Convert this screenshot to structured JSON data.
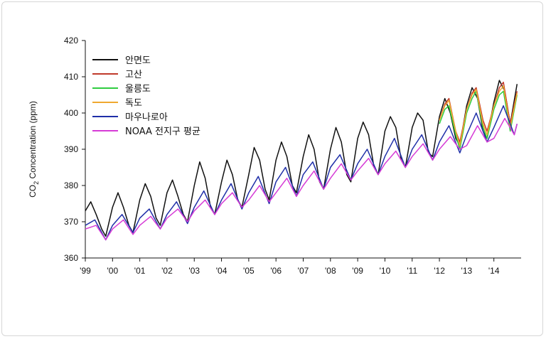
{
  "chart_data": {
    "type": "line",
    "title": "",
    "xlabel": "",
    "ylabel": "CO2 Concentration (ppm)",
    "ylabel_main": "CO",
    "ylabel_sub": "2",
    "ylabel_rest": " Concentration (ppm)",
    "xlim": [
      1999,
      2015
    ],
    "ylim": [
      360,
      420
    ],
    "yticks": [
      360,
      370,
      380,
      390,
      400,
      410,
      420
    ],
    "xticks": [
      {
        "x": 1999,
        "label": "'99"
      },
      {
        "x": 2000,
        "label": "'00"
      },
      {
        "x": 2001,
        "label": "'01"
      },
      {
        "x": 2002,
        "label": "'02"
      },
      {
        "x": 2003,
        "label": "'03"
      },
      {
        "x": 2004,
        "label": "'04"
      },
      {
        "x": 2005,
        "label": "'05"
      },
      {
        "x": 2006,
        "label": "'06"
      },
      {
        "x": 2007,
        "label": "'07"
      },
      {
        "x": 2008,
        "label": "'08"
      },
      {
        "x": 2009,
        "label": "'09"
      },
      {
        "x": 2010,
        "label": "'10"
      },
      {
        "x": 2011,
        "label": "'11"
      },
      {
        "x": 2012,
        "label": "'12"
      },
      {
        "x": 2013,
        "label": "'13"
      },
      {
        "x": 2014,
        "label": "'14"
      }
    ],
    "grid": false,
    "legend_position": "top-left",
    "series": [
      {
        "name": "안면도",
        "color": "#111111",
        "x": [
          1999.0,
          1999.2,
          1999.4,
          1999.6,
          1999.75,
          2000.0,
          2000.2,
          2000.4,
          2000.6,
          2000.75,
          2001.0,
          2001.2,
          2001.4,
          2001.6,
          2001.75,
          2002.0,
          2002.2,
          2002.4,
          2002.6,
          2002.75,
          2003.0,
          2003.2,
          2003.4,
          2003.6,
          2003.75,
          2004.0,
          2004.2,
          2004.4,
          2004.6,
          2004.75,
          2005.0,
          2005.2,
          2005.4,
          2005.6,
          2005.75,
          2006.0,
          2006.2,
          2006.4,
          2006.6,
          2006.75,
          2007.0,
          2007.2,
          2007.4,
          2007.6,
          2007.75,
          2008.0,
          2008.2,
          2008.4,
          2008.6,
          2008.75,
          2009.0,
          2009.2,
          2009.4,
          2009.6,
          2009.75,
          2010.0,
          2010.2,
          2010.4,
          2010.6,
          2010.75,
          2011.0,
          2011.2,
          2011.4,
          2011.6,
          2011.75,
          2012.0,
          2012.2,
          2012.4,
          2012.6,
          2012.75,
          2013.0,
          2013.2,
          2013.4,
          2013.6,
          2013.75,
          2014.0,
          2014.2,
          2014.4,
          2014.6,
          2014.85
        ],
        "y": [
          373,
          375.5,
          372,
          368,
          366,
          374,
          378,
          374,
          369,
          367,
          376,
          380.5,
          377,
          371,
          369,
          378,
          381.5,
          377,
          372,
          370,
          380,
          386.5,
          382,
          374,
          372,
          381,
          387,
          383,
          376,
          374,
          383,
          390.5,
          387,
          379,
          376,
          387,
          392,
          388,
          380,
          378,
          388,
          394,
          390,
          381,
          379,
          390,
          396,
          392,
          383,
          381,
          393,
          397.5,
          394,
          385,
          383,
          395,
          399,
          396,
          387,
          385,
          396,
          400,
          398,
          389,
          388,
          399,
          404,
          400,
          393,
          391,
          402,
          407,
          404,
          395,
          393,
          403,
          409,
          406,
          397,
          408
        ]
      },
      {
        "name": "고산",
        "color": "#c0392b",
        "x": [
          2012.0,
          2012.2,
          2012.35,
          2012.6,
          2012.75,
          2013.0,
          2013.2,
          2013.35,
          2013.6,
          2013.75,
          2014.0,
          2014.2,
          2014.35,
          2014.6,
          2014.85
        ],
        "y": [
          398,
          402.5,
          404,
          395,
          392,
          401,
          405.5,
          407,
          398,
          395,
          402,
          407,
          408.5,
          397,
          406
        ]
      },
      {
        "name": "울릉도",
        "color": "#2ecc40",
        "x": [
          2012.0,
          2012.2,
          2012.35,
          2012.6,
          2012.75,
          2013.0,
          2013.2,
          2013.35,
          2013.6,
          2013.75,
          2014.0,
          2014.2,
          2014.35,
          2014.6,
          2014.85
        ],
        "y": [
          397,
          401,
          402,
          394,
          390,
          400,
          404,
          406,
          396,
          393,
          401,
          405,
          406,
          395,
          405
        ]
      },
      {
        "name": "독도",
        "color": "#f0a830",
        "x": [
          2012.0,
          2012.2,
          2012.35,
          2012.6,
          2012.75,
          2013.0,
          2013.2,
          2013.35,
          2013.6,
          2013.75,
          2014.0,
          2014.2,
          2014.35,
          2014.6,
          2014.85
        ],
        "y": [
          398,
          402,
          403.5,
          395,
          391,
          401,
          405,
          406.5,
          397,
          394,
          402,
          406,
          407.5,
          396,
          405.5
        ]
      },
      {
        "name": "마우나로아",
        "color": "#1f2fa8",
        "x": [
          1999.0,
          1999.35,
          1999.75,
          2000.0,
          2000.35,
          2000.75,
          2001.0,
          2001.35,
          2001.75,
          2002.0,
          2002.35,
          2002.75,
          2003.0,
          2003.35,
          2003.75,
          2004.0,
          2004.35,
          2004.75,
          2005.0,
          2005.35,
          2005.75,
          2006.0,
          2006.35,
          2006.75,
          2007.0,
          2007.35,
          2007.75,
          2008.0,
          2008.35,
          2008.75,
          2009.0,
          2009.35,
          2009.75,
          2010.0,
          2010.35,
          2010.75,
          2011.0,
          2011.35,
          2011.75,
          2012.0,
          2012.35,
          2012.75,
          2013.0,
          2013.35,
          2013.75,
          2014.0,
          2014.35,
          2014.75,
          2014.85
        ],
        "y": [
          369,
          370.5,
          365,
          369,
          372,
          367,
          371,
          373.5,
          368,
          372,
          375.5,
          369.5,
          374,
          378.5,
          372,
          376,
          380.5,
          373.5,
          378,
          382.5,
          375,
          381,
          385,
          377,
          383,
          386.5,
          379,
          385,
          388.5,
          381.5,
          386,
          390,
          383,
          388,
          393,
          385,
          390,
          394,
          387,
          392,
          396.5,
          389,
          394,
          400,
          392,
          396,
          402,
          394,
          397
        ]
      },
      {
        "name": "NOAA 전지구 평균",
        "color": "#d63bd6",
        "x": [
          1999.0,
          1999.4,
          1999.75,
          2000.0,
          2000.4,
          2000.75,
          2001.0,
          2001.4,
          2001.75,
          2002.0,
          2002.4,
          2002.75,
          2003.0,
          2003.4,
          2003.75,
          2004.0,
          2004.4,
          2004.75,
          2005.0,
          2005.4,
          2005.75,
          2006.0,
          2006.4,
          2006.75,
          2007.0,
          2007.4,
          2007.75,
          2008.0,
          2008.4,
          2008.75,
          2009.0,
          2009.4,
          2009.75,
          2010.0,
          2010.4,
          2010.75,
          2011.0,
          2011.4,
          2011.75,
          2012.0,
          2012.4,
          2012.75,
          2013.0,
          2013.4,
          2013.75,
          2014.0,
          2014.4,
          2014.75,
          2014.85
        ],
        "y": [
          368,
          369,
          365,
          368,
          370.5,
          366.5,
          369,
          371.5,
          368,
          371,
          373.5,
          370,
          373,
          376,
          372,
          375,
          378,
          374,
          376,
          380,
          375.5,
          378,
          382,
          377,
          380,
          384,
          379,
          382,
          386,
          381.5,
          384,
          387.5,
          383,
          386,
          389.5,
          385,
          388,
          391.5,
          387,
          390,
          393.5,
          390,
          391,
          396.5,
          392,
          393,
          398.5,
          394,
          397
        ]
      }
    ]
  }
}
